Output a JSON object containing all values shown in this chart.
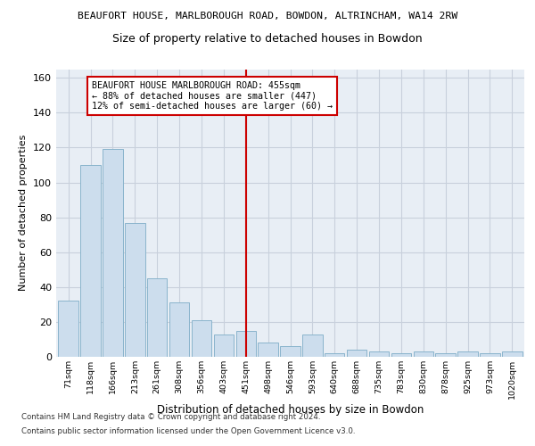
{
  "title": "BEAUFORT HOUSE, MARLBOROUGH ROAD, BOWDON, ALTRINCHAM, WA14 2RW",
  "subtitle": "Size of property relative to detached houses in Bowdon",
  "xlabel": "Distribution of detached houses by size in Bowdon",
  "ylabel": "Number of detached properties",
  "tick_labels": [
    "71sqm",
    "118sqm",
    "166sqm",
    "213sqm",
    "261sqm",
    "308sqm",
    "356sqm",
    "403sqm",
    "451sqm",
    "498sqm",
    "546sqm",
    "593sqm",
    "640sqm",
    "688sqm",
    "735sqm",
    "783sqm",
    "830sqm",
    "878sqm",
    "925sqm",
    "973sqm",
    "1020sqm"
  ],
  "bar_heights": [
    32,
    110,
    119,
    77,
    45,
    31,
    21,
    13,
    15,
    8,
    6,
    13,
    2,
    4,
    3,
    2,
    3,
    2,
    3,
    2,
    3
  ],
  "bar_color": "#ccdded",
  "bar_edge_color": "#8ab4cc",
  "vline_idx": 8,
  "vline_color": "#cc0000",
  "annotation_title": "BEAUFORT HOUSE MARLBOROUGH ROAD: 455sqm",
  "annotation_line1": "← 88% of detached houses are smaller (447)",
  "annotation_line2": "12% of semi-detached houses are larger (60) →",
  "annotation_box_facecolor": "#ffffff",
  "annotation_box_edgecolor": "#cc0000",
  "grid_color": "#c8d0dc",
  "background_color": "#e8eef5",
  "footer1": "Contains HM Land Registry data © Crown copyright and database right 2024.",
  "footer2": "Contains public sector information licensed under the Open Government Licence v3.0.",
  "ylim": [
    0,
    165
  ],
  "yticks": [
    0,
    20,
    40,
    60,
    80,
    100,
    120,
    140,
    160
  ]
}
